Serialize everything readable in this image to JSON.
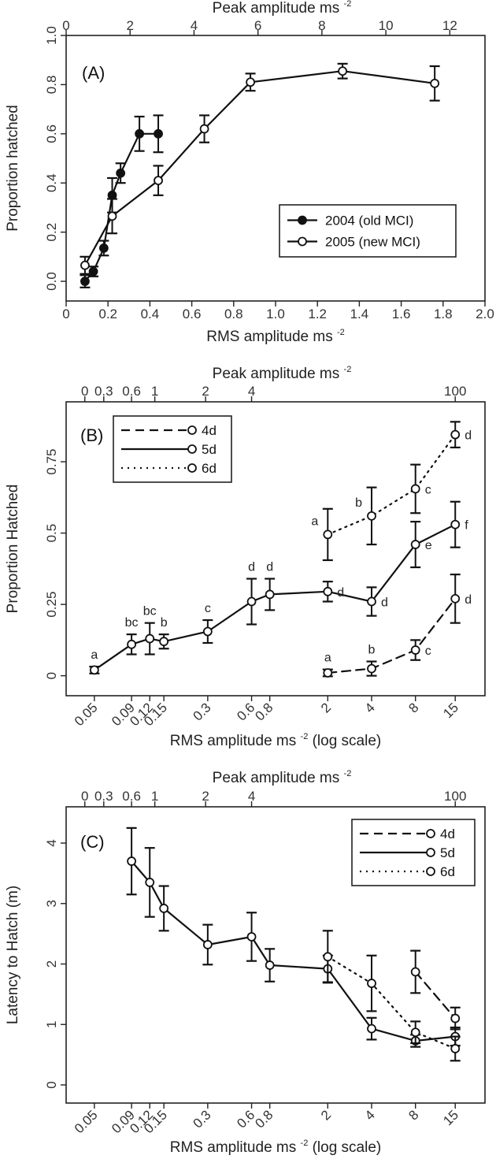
{
  "chart_data": [
    {
      "panel": "(A)",
      "type": "line",
      "xscale": "linear",
      "xlabel": "RMS amplitude ms",
      "xlabel_exp": "-2",
      "top_xlabel": "Peak amplitude ms",
      "top_xlabel_exp": "-2",
      "ylabel": "Proportion hatched",
      "xlim": [
        0,
        2.0
      ],
      "ylim": [
        -0.08,
        1.0
      ],
      "xticks": [
        0,
        0.2,
        0.4,
        0.6,
        0.8,
        1.0,
        1.2,
        1.4,
        1.6,
        1.8,
        2.0
      ],
      "xtick_labels": [
        "0",
        "0.2",
        "0.4",
        "0.6",
        "0.8",
        "1.0",
        "1.2",
        "1.4",
        "1.6",
        "1.8",
        "2.0"
      ],
      "yticks": [
        0,
        0.2,
        0.4,
        0.6,
        0.8,
        1.0
      ],
      "ytick_labels": [
        "0.0",
        "0.2",
        "0.4",
        "0.6",
        "0.8",
        "1.0"
      ],
      "top_ticks": [
        0,
        2,
        4,
        6,
        8,
        10,
        12
      ],
      "top_tick_labels": [
        "0",
        "2",
        "4",
        "6",
        "8",
        "10",
        "12"
      ],
      "top_max": 13.1,
      "legend": {
        "position": "bottom-right",
        "entries": [
          "2004 (old MCI)",
          "2005 (new MCI)"
        ]
      },
      "series": [
        {
          "name": "2004 (old MCI)",
          "marker": "filled",
          "dash": "solid",
          "x": [
            0.09,
            0.13,
            0.18,
            0.22,
            0.26,
            0.35,
            0.44
          ],
          "y": [
            0.0,
            0.04,
            0.135,
            0.35,
            0.44,
            0.6,
            0.6
          ],
          "err": [
            0.025,
            0.02,
            0.03,
            0.07,
            0.04,
            0.07,
            0.075
          ]
        },
        {
          "name": "2005 (new MCI)",
          "marker": "open",
          "dash": "solid",
          "x": [
            0.09,
            0.22,
            0.44,
            0.66,
            0.88,
            1.32,
            1.76
          ],
          "y": [
            0.065,
            0.265,
            0.41,
            0.62,
            0.81,
            0.855,
            0.805
          ],
          "err": [
            0.035,
            0.07,
            0.06,
            0.055,
            0.035,
            0.03,
            0.07
          ]
        }
      ]
    },
    {
      "panel": "(B)",
      "type": "line",
      "xscale": "log",
      "xlabel": "RMS amplitude ms",
      "xlabel_exp": "-2",
      "xlabel_suffix": " (log scale)",
      "top_xlabel": "Peak amplitude ms",
      "top_xlabel_exp": "-2",
      "ylabel": "Proportion Hatched",
      "xlim": [
        0.032,
        24
      ],
      "ylim": [
        -0.07,
        0.96
      ],
      "xticks": [
        0.05,
        0.09,
        0.12,
        0.15,
        0.3,
        0.6,
        0.8,
        2,
        4,
        8,
        15
      ],
      "xtick_labels": [
        "0.05",
        "0.09",
        "0.12",
        "0.15",
        "0.3",
        "0.6",
        "0.8",
        "2",
        "4",
        "8",
        "15"
      ],
      "yticks": [
        0,
        0.25,
        0.5,
        0.75
      ],
      "ytick_labels": [
        "0",
        "0.25",
        "0.5",
        "0.75"
      ],
      "top_tick_labels": [
        "0",
        "0.3",
        "0.6",
        "1",
        "2",
        "4",
        "100"
      ],
      "top_tick_at_rms": [
        0.043,
        0.058,
        0.09,
        0.13,
        0.29,
        0.6,
        15
      ],
      "legend": {
        "position": "top-left",
        "entries": [
          "4d",
          "5d",
          "6d"
        ]
      },
      "series": [
        {
          "name": "4d",
          "marker": "open",
          "dash": "dashed",
          "x": [
            2,
            4,
            8,
            15
          ],
          "y": [
            0.01,
            0.025,
            0.09,
            0.27
          ],
          "err": [
            0.012,
            0.025,
            0.035,
            0.085
          ],
          "letters": [
            "a",
            "b",
            "c",
            "d"
          ],
          "letter_side": [
            "up",
            "up",
            "right",
            "right"
          ]
        },
        {
          "name": "5d",
          "marker": "open",
          "dash": "solid",
          "x": [
            0.05,
            0.09,
            0.12,
            0.15,
            0.3,
            0.6,
            0.8,
            2,
            4,
            8,
            15
          ],
          "y": [
            0.02,
            0.11,
            0.13,
            0.12,
            0.155,
            0.26,
            0.285,
            0.295,
            0.26,
            0.46,
            0.53
          ],
          "err": [
            0.012,
            0.035,
            0.055,
            0.025,
            0.04,
            0.08,
            0.055,
            0.035,
            0.05,
            0.08,
            0.08
          ],
          "letters": [
            "a",
            "bc",
            "bc",
            "b",
            "c",
            "d",
            "d",
            "d",
            "d",
            "e",
            "f"
          ],
          "letter_side": [
            "up",
            "up",
            "up",
            "up",
            "up",
            "up",
            "up",
            "right",
            "right",
            "right",
            "right"
          ]
        },
        {
          "name": "6d",
          "marker": "open",
          "dash": "dotted",
          "x": [
            2,
            4,
            8,
            15
          ],
          "y": [
            0.495,
            0.56,
            0.655,
            0.845
          ],
          "err": [
            0.09,
            0.1,
            0.085,
            0.045
          ],
          "letters": [
            "a",
            "b",
            "c",
            "d"
          ],
          "letter_side": [
            "left",
            "left",
            "right",
            "right"
          ]
        }
      ]
    },
    {
      "panel": "(C)",
      "type": "line",
      "xscale": "log",
      "xlabel": "RMS amplitude ms",
      "xlabel_exp": "-2",
      "xlabel_suffix": " (log scale)",
      "top_xlabel": "Peak amplitude ms",
      "top_xlabel_exp": "-2",
      "ylabel": "Latency to Hatch (m)",
      "xlim": [
        0.032,
        24
      ],
      "ylim": [
        -0.3,
        4.6
      ],
      "xticks": [
        0.05,
        0.09,
        0.12,
        0.15,
        0.3,
        0.6,
        0.8,
        2,
        4,
        8,
        15
      ],
      "xtick_labels": [
        "0.05",
        "0.09",
        "0.12",
        "0.15",
        "0.3",
        "0.6",
        "0.8",
        "2",
        "4",
        "8",
        "15"
      ],
      "yticks": [
        0,
        1,
        2,
        3,
        4
      ],
      "ytick_labels": [
        "0",
        "1",
        "2",
        "3",
        "4"
      ],
      "top_tick_labels": [
        "0",
        "0.3",
        "0.6",
        "1",
        "2",
        "4",
        "100"
      ],
      "top_tick_at_rms": [
        0.043,
        0.058,
        0.09,
        0.13,
        0.29,
        0.6,
        15
      ],
      "legend": {
        "position": "top-right",
        "entries": [
          "4d",
          "5d",
          "6d"
        ]
      },
      "series": [
        {
          "name": "4d",
          "marker": "open",
          "dash": "dashed",
          "x": [
            8,
            15
          ],
          "y": [
            1.87,
            1.1
          ],
          "err": [
            0.35,
            0.18
          ]
        },
        {
          "name": "5d",
          "marker": "open",
          "dash": "solid",
          "x": [
            0.09,
            0.12,
            0.15,
            0.3,
            0.6,
            0.8,
            2,
            4,
            8,
            15
          ],
          "y": [
            3.7,
            3.35,
            2.92,
            2.32,
            2.45,
            1.98,
            1.92,
            0.93,
            0.73,
            0.8
          ],
          "err": [
            0.55,
            0.57,
            0.37,
            0.33,
            0.4,
            0.27,
            0.22,
            0.18,
            0.1,
            0.15
          ]
        },
        {
          "name": "6d",
          "marker": "open",
          "dash": "dotted",
          "x": [
            2,
            4,
            8,
            15
          ],
          "y": [
            2.12,
            1.68,
            0.87,
            0.6
          ],
          "err": [
            0.43,
            0.46,
            0.18,
            0.2
          ]
        }
      ]
    }
  ]
}
